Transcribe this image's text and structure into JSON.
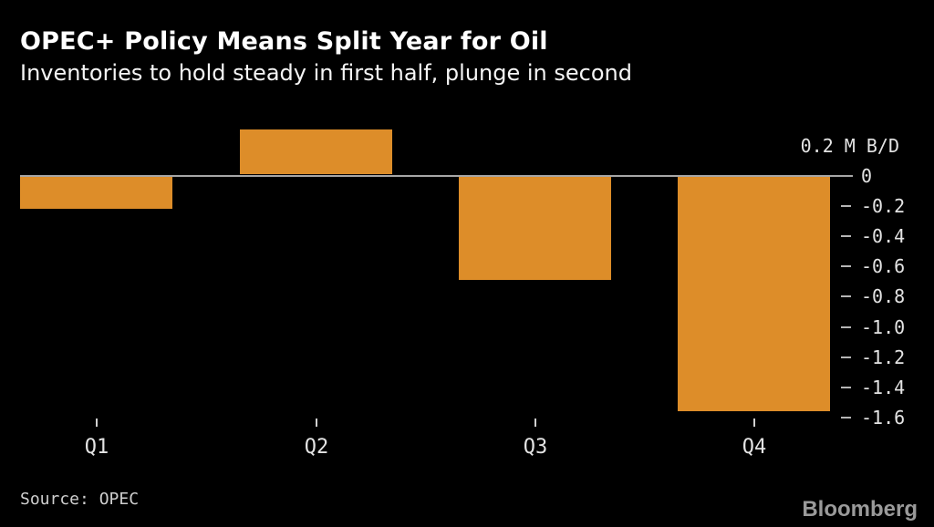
{
  "header": {
    "title": "OPEC+ Policy Means Split Year for Oil",
    "subtitle": "Inventories to hold steady in first half, plunge in second"
  },
  "footer": {
    "source": "Source: OPEC",
    "logo": "Bloomberg"
  },
  "colors": {
    "background": "#000000",
    "bar": "#dd8d29",
    "axis_line": "#a6a6a6",
    "tick_dash": "#b5b5b5",
    "tick_label": "#e3e3e3",
    "title_text": "#ffffff",
    "source_text": "#cfcfcf",
    "logo_text": "#9a9a9a"
  },
  "chart_data": {
    "type": "bar",
    "title": "OPEC+ Policy Means Split Year for Oil",
    "subtitle": "Inventories to hold steady in first half, plunge in second",
    "categories": [
      "Q1",
      "Q2",
      "Q3",
      "Q4"
    ],
    "values": [
      -0.22,
      0.3,
      -0.69,
      -1.56
    ],
    "unit": "M B/D",
    "xlabel": "",
    "ylabel": "M B/D",
    "ylim": [
      -1.7,
      0.35
    ],
    "grid": false,
    "legend_position": "none",
    "y_axis_side": "right",
    "y_ticks": [
      {
        "value": 0.2,
        "label": "0.2 M B/D",
        "style": "unit"
      },
      {
        "value": 0,
        "label": "0",
        "style": "zero"
      },
      {
        "value": -0.2,
        "label": "-0.2",
        "style": "normal"
      },
      {
        "value": -0.4,
        "label": "-0.4",
        "style": "normal"
      },
      {
        "value": -0.6,
        "label": "-0.6",
        "style": "normal"
      },
      {
        "value": -0.8,
        "label": "-0.8",
        "style": "normal"
      },
      {
        "value": -1.0,
        "label": "-1.0",
        "style": "normal"
      },
      {
        "value": -1.2,
        "label": "-1.2",
        "style": "normal"
      },
      {
        "value": -1.4,
        "label": "-1.4",
        "style": "normal"
      },
      {
        "value": -1.6,
        "label": "-1.6",
        "style": "normal"
      }
    ],
    "source": "Source: OPEC"
  }
}
